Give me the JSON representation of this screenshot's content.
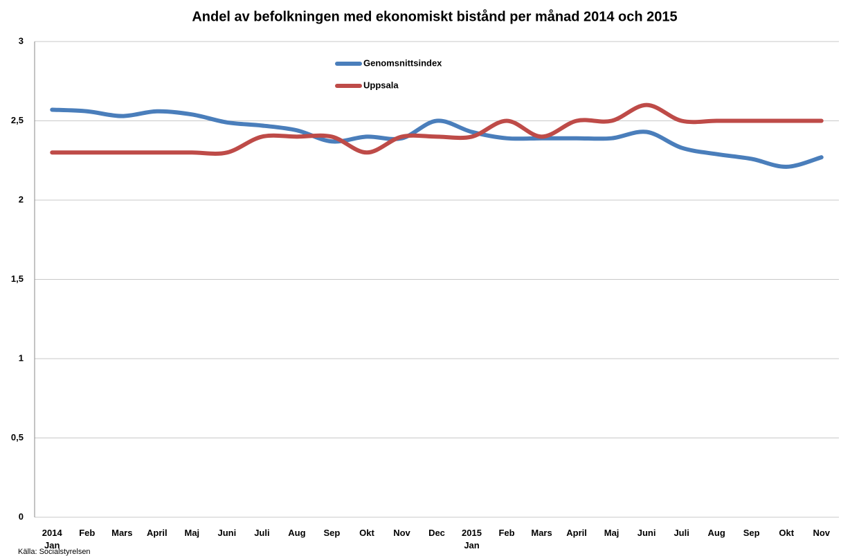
{
  "chart_data": {
    "type": "line",
    "title": "Andel av befolkningen med ekonomiskt bistånd per månad 2014 och 2015",
    "categories": [
      "2014\nJan",
      "Feb",
      "Mars",
      "April",
      "Maj",
      "Juni",
      "Juli",
      "Aug",
      "Sep",
      "Okt",
      "Nov",
      "Dec",
      "2015\nJan",
      "Feb",
      "Mars",
      "April",
      "Maj",
      "Juni",
      "Juli",
      "Aug",
      "Sep",
      "Okt",
      "Nov"
    ],
    "series": [
      {
        "name": "Genomsnittsindex",
        "color": "#4a7ebb",
        "values": [
          2.57,
          2.56,
          2.53,
          2.56,
          2.54,
          2.49,
          2.47,
          2.44,
          2.37,
          2.4,
          2.39,
          2.5,
          2.43,
          2.39,
          2.39,
          2.39,
          2.39,
          2.43,
          2.33,
          2.29,
          2.26,
          2.21,
          2.27
        ]
      },
      {
        "name": "Uppsala",
        "color": "#be4b48",
        "values": [
          2.3,
          2.3,
          2.3,
          2.3,
          2.3,
          2.3,
          2.4,
          2.4,
          2.4,
          2.3,
          2.4,
          2.4,
          2.4,
          2.5,
          2.4,
          2.5,
          2.5,
          2.6,
          2.5,
          2.5,
          2.5,
          2.5,
          2.5
        ]
      }
    ],
    "ylim": [
      0,
      3
    ],
    "yticks": [
      0,
      {
        "value": 0.5,
        "label": "0,5"
      },
      1,
      {
        "value": 1.5,
        "label": "1,5"
      },
      2,
      {
        "value": 2.5,
        "label": "2,5"
      },
      3
    ],
    "grid": true,
    "source": "Källa: Socialstyrelsen"
  }
}
